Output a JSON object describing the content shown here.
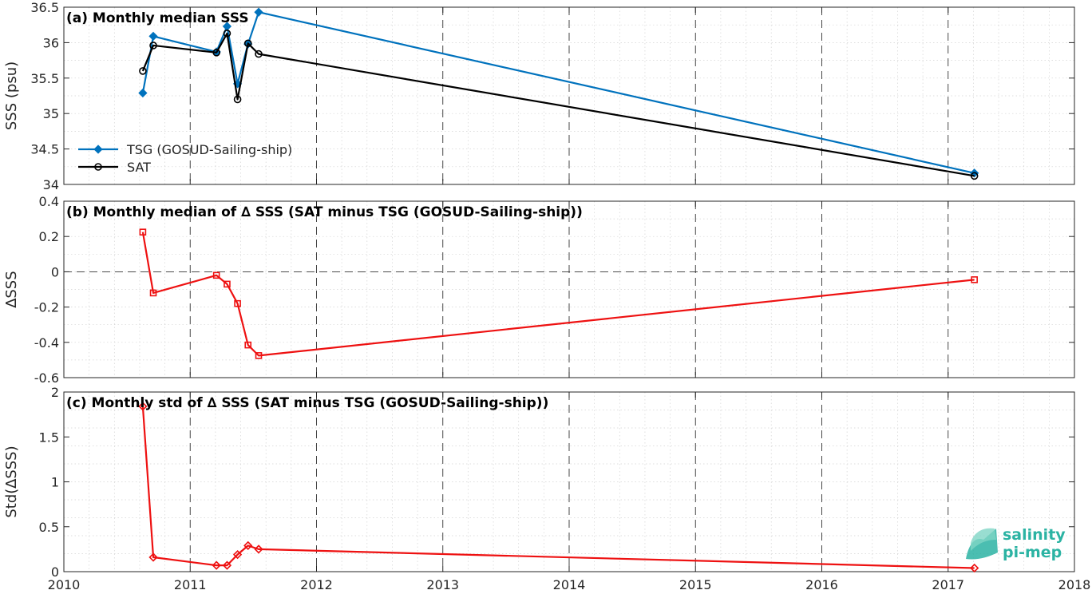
{
  "colors": {
    "tsg": "#0072bd",
    "sat": "#000000",
    "delta": "#ee1111",
    "logo": "#2bb3a3"
  },
  "logo": {
    "line1": "salinity",
    "line2": "pi-mep"
  },
  "chart_data": [
    {
      "type": "line",
      "title": "(a) Monthly median SSS",
      "xlabel": "",
      "ylabel": "SSS (psu)",
      "xlim": [
        2010,
        2018
      ],
      "ylim": [
        34,
        36.5
      ],
      "xticks": [
        2010,
        2011,
        2012,
        2013,
        2014,
        2015,
        2016,
        2017,
        2018
      ],
      "yticks": [
        "34",
        "34.5",
        "35",
        "35.5",
        "36",
        "36.5"
      ],
      "grid": true,
      "legend_position": "bottom-left",
      "series": [
        {
          "name": "TSG (GOSUD-Sailing-ship)",
          "marker": "diamond",
          "color_key": "tsg",
          "x": [
            2010.625,
            2010.708,
            2011.208,
            2011.292,
            2011.375,
            2011.458,
            2011.542,
            2017.208
          ],
          "y": [
            35.29,
            36.09,
            35.87,
            36.23,
            35.42,
            35.98,
            36.43,
            34.16
          ]
        },
        {
          "name": "SAT",
          "marker": "circle",
          "color_key": "sat",
          "x": [
            2010.625,
            2010.708,
            2011.208,
            2011.292,
            2011.375,
            2011.458,
            2011.542,
            2017.208
          ],
          "y": [
            35.6,
            35.96,
            35.86,
            36.13,
            35.2,
            35.99,
            35.84,
            34.12
          ]
        }
      ]
    },
    {
      "type": "line",
      "title": "(b) Monthly median of ∆ SSS (SAT minus TSG (GOSUD-Sailing-ship))",
      "xlabel": "",
      "ylabel": "∆SSS",
      "xlim": [
        2010,
        2018
      ],
      "ylim": [
        -0.6,
        0.4
      ],
      "xticks": [
        2010,
        2011,
        2012,
        2013,
        2014,
        2015,
        2016,
        2017,
        2018
      ],
      "yticks": [
        "-0.6",
        "-0.4",
        "-0.2",
        "0",
        "0.2",
        "0.4"
      ],
      "grid": true,
      "zero_line": true,
      "series": [
        {
          "marker": "square",
          "color_key": "delta",
          "x": [
            2010.625,
            2010.708,
            2011.208,
            2011.292,
            2011.375,
            2011.458,
            2011.542,
            2017.208
          ],
          "y": [
            0.225,
            -0.12,
            -0.02,
            -0.07,
            -0.18,
            -0.415,
            -0.475,
            -0.045
          ]
        }
      ]
    },
    {
      "type": "line",
      "title": "(c) Monthly std of ∆ SSS (SAT minus TSG (GOSUD-Sailing-ship))",
      "xlabel": "",
      "ylabel": "Std(∆SSS)",
      "xlim": [
        2010,
        2018
      ],
      "ylim": [
        0,
        2
      ],
      "xticks": [
        2010,
        2011,
        2012,
        2013,
        2014,
        2015,
        2016,
        2017,
        2018
      ],
      "yticks": [
        "0",
        "0.5",
        "1",
        "1.5",
        "2"
      ],
      "grid": true,
      "series": [
        {
          "marker": "diamond",
          "color_key": "delta",
          "x": [
            2010.625,
            2010.708,
            2011.208,
            2011.292,
            2011.375,
            2011.458,
            2011.542,
            2017.208
          ],
          "y": [
            1.84,
            0.16,
            0.07,
            0.07,
            0.19,
            0.29,
            0.25,
            0.04
          ]
        }
      ]
    }
  ]
}
